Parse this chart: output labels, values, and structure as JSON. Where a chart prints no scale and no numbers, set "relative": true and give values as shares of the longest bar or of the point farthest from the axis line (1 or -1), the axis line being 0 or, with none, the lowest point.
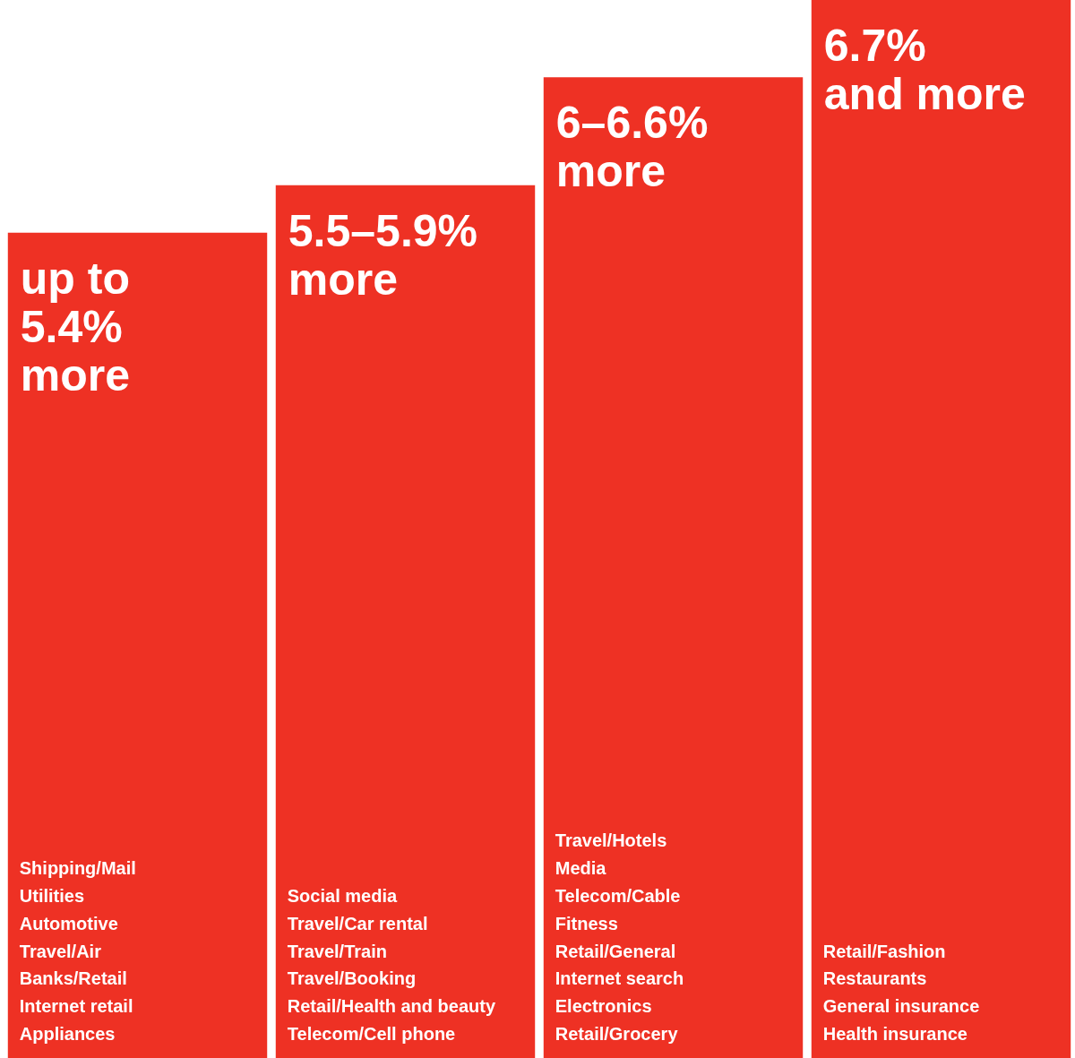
{
  "chart_data": {
    "type": "bar",
    "relative": true,
    "categories": [
      "up to\n5.4%\nmore",
      "5.5–5.9%\nmore",
      "6–6.6%\nmore",
      "6.7%\nand more"
    ],
    "values": [
      0.78,
      0.825,
      0.927,
      1
    ],
    "color": "#ee3124",
    "annotations": [
      "Shipping/Mail\nUtilities\nAutomotive\nTravel/Air\nBanks/Retail\nInternet retail\nAppliances",
      "Social media\nTravel/Car rental\nTravel/Train\nTravel/Booking\nRetail/Health and beauty\nTelecom/Cell phone",
      "Travel/Hotels\nMedia\nTelecom/Cable\nFitness\nRetail/General\nInternet search\nElectronics\nRetail/Grocery",
      "Retail/Fashion\nRestaurants\nGeneral insurance\nHealth insurance"
    ]
  }
}
